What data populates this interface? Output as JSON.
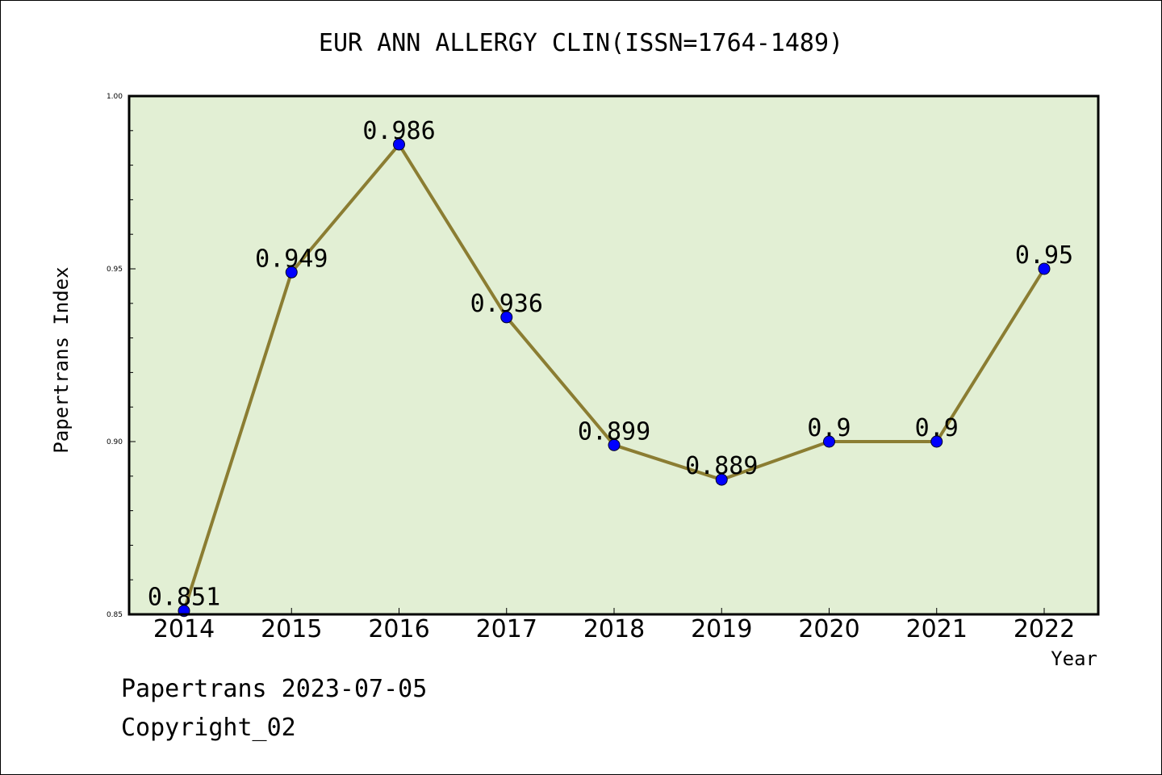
{
  "chart_data": {
    "type": "line",
    "title": "EUR ANN ALLERGY CLIN(ISSN=1764-1489)",
    "xlabel": "Year",
    "ylabel": "Papertrans Index",
    "categories": [
      "2014",
      "2015",
      "2016",
      "2017",
      "2018",
      "2019",
      "2020",
      "2021",
      "2022"
    ],
    "values": [
      0.851,
      0.949,
      0.986,
      0.936,
      0.899,
      0.889,
      0.9,
      0.9,
      0.95
    ],
    "data_labels": [
      "0.851",
      "0.949",
      "0.986",
      "0.936",
      "0.899",
      "0.889",
      "0.9",
      "0.9",
      "0.95"
    ],
    "ylim": [
      0.85,
      1.0
    ],
    "yticks": [
      "0.85",
      "0.90",
      "0.95",
      "1.00"
    ],
    "grid": false,
    "plot_background": "#e2efd4",
    "line_color": "#8b7d32",
    "marker_color": "#0000ff"
  },
  "footer": {
    "line1": "Papertrans 2023-07-05",
    "line2": "Copyright_02"
  }
}
